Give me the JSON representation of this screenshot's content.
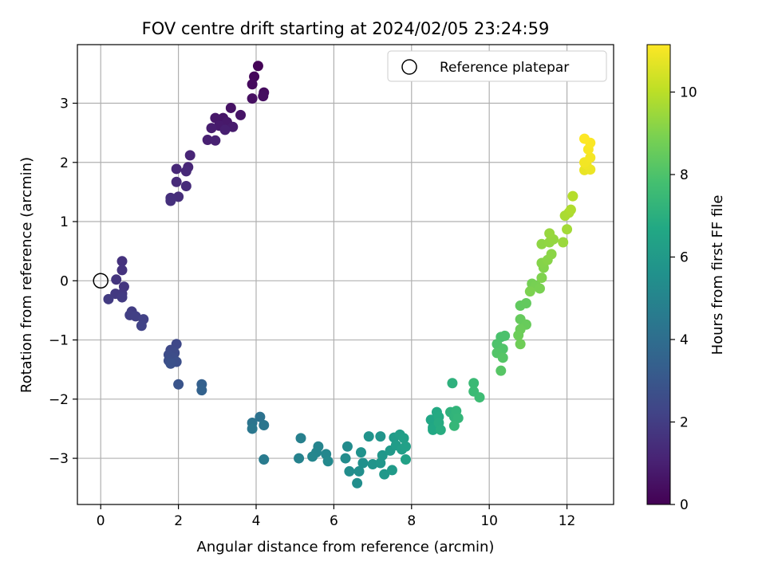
{
  "chart_data": {
    "type": "scatter",
    "title": "FOV centre drift starting at 2024/02/05 23:24:59",
    "xlabel": "Angular distance from reference (arcmin)",
    "ylabel": "Rotation from reference (arcmin)",
    "xlim": [
      -0.6,
      13.2
    ],
    "ylim": [
      -3.78,
      3.99
    ],
    "x_ticks": [
      0,
      2,
      4,
      6,
      8,
      10,
      12
    ],
    "y_ticks": [
      -3,
      -2,
      -1,
      0,
      1,
      2,
      3
    ],
    "x_tick_labels": [
      "0",
      "2",
      "4",
      "6",
      "8",
      "10",
      "12"
    ],
    "y_tick_labels": [
      "−3",
      "−2",
      "−1",
      "0",
      "1",
      "2",
      "3"
    ],
    "grid": true,
    "legend": {
      "position": "top-right",
      "entries": [
        "Reference platepar"
      ]
    },
    "reference_point": {
      "x": 0,
      "y": 0
    },
    "colorbar": {
      "label": "Hours from first FF file",
      "min": 0,
      "max": 11.15,
      "ticks": [
        0,
        2,
        4,
        6,
        8,
        10
      ],
      "tick_labels": [
        "0",
        "2",
        "4",
        "6",
        "8",
        "10"
      ],
      "colormap": "viridis"
    },
    "points": [
      {
        "x": 4.05,
        "y": 3.63,
        "t": 0.1
      },
      {
        "x": 3.95,
        "y": 3.45,
        "t": 0.2
      },
      {
        "x": 3.9,
        "y": 3.32,
        "t": 0.3
      },
      {
        "x": 4.2,
        "y": 3.18,
        "t": 0.35
      },
      {
        "x": 4.18,
        "y": 3.12,
        "t": 0.4
      },
      {
        "x": 3.9,
        "y": 3.08,
        "t": 0.45
      },
      {
        "x": 3.35,
        "y": 2.92,
        "t": 0.55
      },
      {
        "x": 3.6,
        "y": 2.8,
        "t": 0.6
      },
      {
        "x": 3.15,
        "y": 2.75,
        "t": 0.65
      },
      {
        "x": 2.95,
        "y": 2.75,
        "t": 0.7
      },
      {
        "x": 3.25,
        "y": 2.68,
        "t": 0.75
      },
      {
        "x": 3.05,
        "y": 2.62,
        "t": 0.8
      },
      {
        "x": 3.4,
        "y": 2.6,
        "t": 0.85
      },
      {
        "x": 2.85,
        "y": 2.58,
        "t": 0.9
      },
      {
        "x": 3.2,
        "y": 2.55,
        "t": 0.95
      },
      {
        "x": 2.75,
        "y": 2.38,
        "t": 1.0
      },
      {
        "x": 2.95,
        "y": 2.37,
        "t": 1.05
      },
      {
        "x": 2.3,
        "y": 2.12,
        "t": 1.15
      },
      {
        "x": 2.25,
        "y": 1.92,
        "t": 1.2
      },
      {
        "x": 1.95,
        "y": 1.89,
        "t": 1.25
      },
      {
        "x": 2.2,
        "y": 1.85,
        "t": 1.3
      },
      {
        "x": 1.95,
        "y": 1.67,
        "t": 1.35
      },
      {
        "x": 2.2,
        "y": 1.6,
        "t": 1.4
      },
      {
        "x": 2.0,
        "y": 1.42,
        "t": 1.45
      },
      {
        "x": 1.8,
        "y": 1.4,
        "t": 1.5
      },
      {
        "x": 1.8,
        "y": 1.35,
        "t": 1.55
      },
      {
        "x": 0.55,
        "y": 0.33,
        "t": 1.6
      },
      {
        "x": 0.55,
        "y": 0.18,
        "t": 1.65
      },
      {
        "x": 0.4,
        "y": 0.02,
        "t": 1.7
      },
      {
        "x": 0.6,
        "y": -0.1,
        "t": 1.75
      },
      {
        "x": 0.55,
        "y": -0.22,
        "t": 1.8
      },
      {
        "x": 0.38,
        "y": -0.22,
        "t": 1.85
      },
      {
        "x": 0.55,
        "y": -0.28,
        "t": 1.9
      },
      {
        "x": 0.2,
        "y": -0.31,
        "t": 1.95
      },
      {
        "x": 0.8,
        "y": -0.52,
        "t": 2.0
      },
      {
        "x": 0.75,
        "y": -0.58,
        "t": 2.05
      },
      {
        "x": 0.9,
        "y": -0.6,
        "t": 2.1
      },
      {
        "x": 1.1,
        "y": -0.65,
        "t": 2.15
      },
      {
        "x": 1.05,
        "y": -0.76,
        "t": 2.2
      },
      {
        "x": 1.95,
        "y": -1.07,
        "t": 2.4
      },
      {
        "x": 1.8,
        "y": -1.17,
        "t": 2.45
      },
      {
        "x": 1.9,
        "y": -1.22,
        "t": 2.5
      },
      {
        "x": 1.75,
        "y": -1.25,
        "t": 2.55
      },
      {
        "x": 1.85,
        "y": -1.3,
        "t": 2.6
      },
      {
        "x": 1.75,
        "y": -1.35,
        "t": 2.65
      },
      {
        "x": 1.95,
        "y": -1.37,
        "t": 2.7
      },
      {
        "x": 1.8,
        "y": -1.4,
        "t": 2.75
      },
      {
        "x": 2.0,
        "y": -1.75,
        "t": 2.9
      },
      {
        "x": 2.6,
        "y": -1.75,
        "t": 3.4
      },
      {
        "x": 2.6,
        "y": -1.85,
        "t": 3.5
      },
      {
        "x": 4.1,
        "y": -2.3,
        "t": 4.2
      },
      {
        "x": 3.9,
        "y": -2.4,
        "t": 4.3
      },
      {
        "x": 4.2,
        "y": -2.44,
        "t": 4.35
      },
      {
        "x": 3.9,
        "y": -2.5,
        "t": 4.4
      },
      {
        "x": 4.2,
        "y": -3.02,
        "t": 4.6
      },
      {
        "x": 5.15,
        "y": -2.66,
        "t": 4.8
      },
      {
        "x": 5.1,
        "y": -3.0,
        "t": 4.9
      },
      {
        "x": 5.6,
        "y": -2.8,
        "t": 5.0
      },
      {
        "x": 5.55,
        "y": -2.9,
        "t": 5.05
      },
      {
        "x": 5.45,
        "y": -2.97,
        "t": 5.1
      },
      {
        "x": 5.8,
        "y": -2.93,
        "t": 5.15
      },
      {
        "x": 5.85,
        "y": -3.05,
        "t": 5.2
      },
      {
        "x": 6.35,
        "y": -2.8,
        "t": 5.3
      },
      {
        "x": 6.3,
        "y": -3.0,
        "t": 5.35
      },
      {
        "x": 6.4,
        "y": -3.22,
        "t": 5.4
      },
      {
        "x": 6.6,
        "y": -3.42,
        "t": 5.45
      },
      {
        "x": 6.65,
        "y": -3.22,
        "t": 5.5
      },
      {
        "x": 6.75,
        "y": -3.08,
        "t": 5.55
      },
      {
        "x": 6.7,
        "y": -2.9,
        "t": 5.6
      },
      {
        "x": 6.9,
        "y": -2.63,
        "t": 5.65
      },
      {
        "x": 7.0,
        "y": -3.1,
        "t": 5.7
      },
      {
        "x": 7.2,
        "y": -2.63,
        "t": 5.75
      },
      {
        "x": 7.2,
        "y": -3.08,
        "t": 5.8
      },
      {
        "x": 7.25,
        "y": -2.95,
        "t": 5.85
      },
      {
        "x": 7.3,
        "y": -3.27,
        "t": 5.9
      },
      {
        "x": 7.45,
        "y": -2.87,
        "t": 5.95
      },
      {
        "x": 7.5,
        "y": -3.2,
        "t": 6.0
      },
      {
        "x": 7.55,
        "y": -2.65,
        "t": 6.05
      },
      {
        "x": 7.6,
        "y": -2.78,
        "t": 6.1
      },
      {
        "x": 7.7,
        "y": -2.6,
        "t": 6.15
      },
      {
        "x": 7.75,
        "y": -2.85,
        "t": 6.2
      },
      {
        "x": 7.8,
        "y": -2.66,
        "t": 6.25
      },
      {
        "x": 7.85,
        "y": -2.8,
        "t": 6.3
      },
      {
        "x": 7.85,
        "y": -3.02,
        "t": 6.35
      },
      {
        "x": 8.5,
        "y": -2.35,
        "t": 6.6
      },
      {
        "x": 8.55,
        "y": -2.48,
        "t": 6.65
      },
      {
        "x": 8.55,
        "y": -2.52,
        "t": 6.7
      },
      {
        "x": 8.65,
        "y": -2.22,
        "t": 6.75
      },
      {
        "x": 8.7,
        "y": -2.3,
        "t": 6.8
      },
      {
        "x": 8.7,
        "y": -2.4,
        "t": 6.85
      },
      {
        "x": 8.75,
        "y": -2.52,
        "t": 6.9
      },
      {
        "x": 9.05,
        "y": -1.73,
        "t": 7.1
      },
      {
        "x": 9.0,
        "y": -2.22,
        "t": 7.15
      },
      {
        "x": 9.1,
        "y": -2.3,
        "t": 7.2
      },
      {
        "x": 9.15,
        "y": -2.2,
        "t": 7.25
      },
      {
        "x": 9.2,
        "y": -2.32,
        "t": 7.3
      },
      {
        "x": 9.1,
        "y": -2.45,
        "t": 7.35
      },
      {
        "x": 9.6,
        "y": -1.73,
        "t": 7.5
      },
      {
        "x": 9.6,
        "y": -1.87,
        "t": 7.55
      },
      {
        "x": 9.75,
        "y": -1.97,
        "t": 7.6
      },
      {
        "x": 10.3,
        "y": -0.95,
        "t": 7.9
      },
      {
        "x": 10.4,
        "y": -0.93,
        "t": 7.95
      },
      {
        "x": 10.2,
        "y": -1.07,
        "t": 8.0
      },
      {
        "x": 10.35,
        "y": -1.15,
        "t": 8.05
      },
      {
        "x": 10.2,
        "y": -1.22,
        "t": 8.1
      },
      {
        "x": 10.35,
        "y": -1.3,
        "t": 8.15
      },
      {
        "x": 10.3,
        "y": -1.52,
        "t": 8.2
      },
      {
        "x": 10.8,
        "y": -0.42,
        "t": 8.4
      },
      {
        "x": 10.95,
        "y": -0.38,
        "t": 8.45
      },
      {
        "x": 10.8,
        "y": -0.65,
        "t": 8.5
      },
      {
        "x": 10.95,
        "y": -0.74,
        "t": 8.55
      },
      {
        "x": 10.8,
        "y": -0.82,
        "t": 8.6
      },
      {
        "x": 10.75,
        "y": -0.92,
        "t": 8.65
      },
      {
        "x": 10.8,
        "y": -1.07,
        "t": 8.7
      },
      {
        "x": 11.1,
        "y": -0.05,
        "t": 8.8
      },
      {
        "x": 11.2,
        "y": -0.08,
        "t": 8.85
      },
      {
        "x": 11.3,
        "y": -0.13,
        "t": 8.9
      },
      {
        "x": 11.05,
        "y": -0.18,
        "t": 8.95
      },
      {
        "x": 11.35,
        "y": 0.05,
        "t": 9.0
      },
      {
        "x": 11.4,
        "y": 0.22,
        "t": 9.05
      },
      {
        "x": 11.35,
        "y": 0.3,
        "t": 9.1
      },
      {
        "x": 11.5,
        "y": 0.35,
        "t": 9.15
      },
      {
        "x": 11.6,
        "y": 0.45,
        "t": 9.2
      },
      {
        "x": 11.35,
        "y": 0.62,
        "t": 9.25
      },
      {
        "x": 11.55,
        "y": 0.65,
        "t": 9.3
      },
      {
        "x": 11.65,
        "y": 0.7,
        "t": 9.35
      },
      {
        "x": 11.55,
        "y": 0.8,
        "t": 9.4
      },
      {
        "x": 11.9,
        "y": 0.65,
        "t": 9.45
      },
      {
        "x": 12.0,
        "y": 0.87,
        "t": 9.6
      },
      {
        "x": 11.95,
        "y": 1.1,
        "t": 9.7
      },
      {
        "x": 12.05,
        "y": 1.15,
        "t": 9.75
      },
      {
        "x": 12.1,
        "y": 1.2,
        "t": 9.8
      },
      {
        "x": 12.15,
        "y": 1.43,
        "t": 9.9
      },
      {
        "x": 12.45,
        "y": 1.87,
        "t": 10.8
      },
      {
        "x": 12.6,
        "y": 1.88,
        "t": 10.85
      },
      {
        "x": 12.5,
        "y": 1.97,
        "t": 10.9
      },
      {
        "x": 12.45,
        "y": 2.0,
        "t": 10.95
      },
      {
        "x": 12.6,
        "y": 2.08,
        "t": 11.0
      },
      {
        "x": 12.55,
        "y": 2.22,
        "t": 11.05
      },
      {
        "x": 12.6,
        "y": 2.33,
        "t": 11.1
      },
      {
        "x": 12.45,
        "y": 2.4,
        "t": 11.15
      }
    ]
  }
}
